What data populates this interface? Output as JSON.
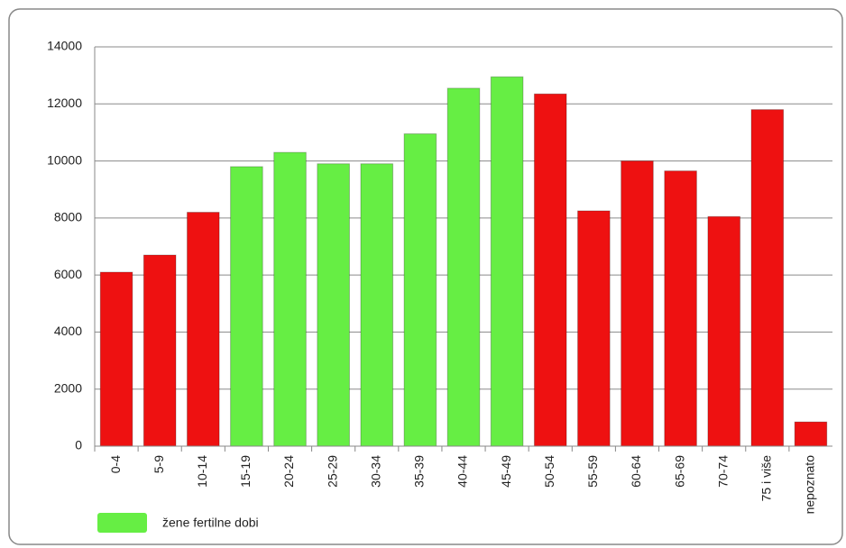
{
  "chart_data": {
    "type": "bar",
    "categories": [
      "0-4",
      "5-9",
      "10-14",
      "15-19",
      "20-24",
      "25-29",
      "30-34",
      "35-39",
      "40-44",
      "45-49",
      "50-54",
      "55-59",
      "60-64",
      "65-69",
      "70-74",
      "75 i više",
      "nepoznato"
    ],
    "values": [
      6100,
      6700,
      8200,
      9800,
      10300,
      9900,
      9900,
      10950,
      12550,
      12950,
      12350,
      8250,
      10000,
      9650,
      8050,
      11800,
      850
    ],
    "colors": [
      "#ee1111",
      "#ee1111",
      "#ee1111",
      "#66ee44",
      "#66ee44",
      "#66ee44",
      "#66ee44",
      "#66ee44",
      "#66ee44",
      "#66ee44",
      "#ee1111",
      "#ee1111",
      "#ee1111",
      "#ee1111",
      "#ee1111",
      "#ee1111",
      "#ee1111"
    ],
    "legend": {
      "label": "žene fertilne dobi",
      "color": "#66ee44"
    },
    "ylim": [
      0,
      14000
    ],
    "yticks": [
      0,
      2000,
      4000,
      6000,
      8000,
      10000,
      12000,
      14000
    ],
    "grid": true
  }
}
